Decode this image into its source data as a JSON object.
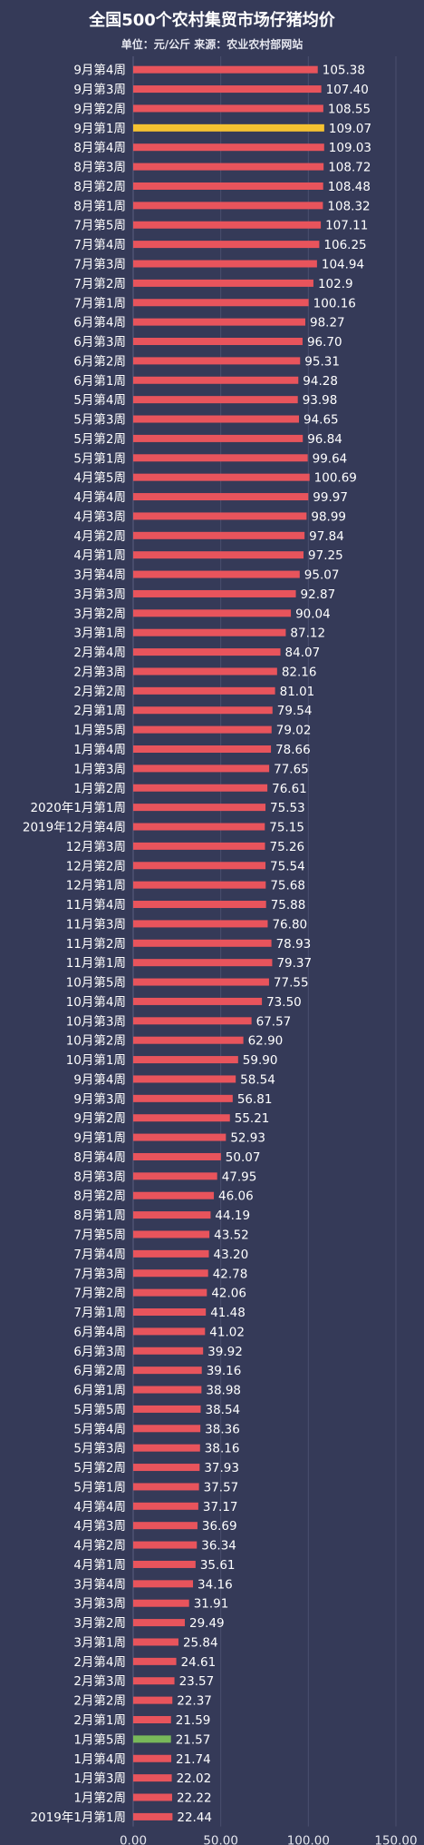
{
  "chart_data": {
    "type": "bar",
    "orientation": "horizontal",
    "title": "全国500个农村集贸市场仔猪均价",
    "subtitle": "单位：元/公斤 来源：农业农村部网站",
    "categories": [
      "9月第4周",
      "9月第3周",
      "9月第2周",
      "9月第1周",
      "8月第4周",
      "8月第3周",
      "8月第2周",
      "8月第1周",
      "7月第5周",
      "7月第4周",
      "7月第3周",
      "7月第2周",
      "7月第1周",
      "6月第4周",
      "6月第3周",
      "6月第2周",
      "6月第1周",
      "5月第4周",
      "5月第3周",
      "5月第2周",
      "5月第1周",
      "4月第5周",
      "4月第4周",
      "4月第3周",
      "4月第2周",
      "4月第1周",
      "3月第4周",
      "3月第3周",
      "3月第2周",
      "3月第1周",
      "2月第4周",
      "2月第3周",
      "2月第2周",
      "2月第1周",
      "1月第5周",
      "1月第4周",
      "1月第3周",
      "1月第2周",
      "2020年1月第1周",
      "2019年12月第4周",
      "12月第3周",
      "12月第2周",
      "12月第1周",
      "11月第4周",
      "11月第3周",
      "11月第2周",
      "11月第1周",
      "10月第5周",
      "10月第4周",
      "10月第3周",
      "10月第2周",
      "10月第1周",
      "9月第4周",
      "9月第3周",
      "9月第2周",
      "9月第1周",
      "8月第4周",
      "8月第3周",
      "8月第2周",
      "8月第1周",
      "7月第5周",
      "7月第4周",
      "7月第3周",
      "7月第2周",
      "7月第1周",
      "6月第4周",
      "6月第3周",
      "6月第2周",
      "6月第1周",
      "5月第5周",
      "5月第4周",
      "5月第3周",
      "5月第2周",
      "5月第1周",
      "4月第4周",
      "4月第3周",
      "4月第2周",
      "4月第1周",
      "3月第4周",
      "3月第3周",
      "3月第2周",
      "3月第1周",
      "2月第4周",
      "2月第3周",
      "2月第2周",
      "2月第1周",
      "1月第5周",
      "1月第4周",
      "1月第3周",
      "1月第2周",
      "2019年1月第1周"
    ],
    "values": [
      "105.38",
      "107.40",
      "108.55",
      "109.07",
      "109.03",
      "108.72",
      "108.48",
      "108.32",
      "107.11",
      "106.25",
      "104.94",
      "102.9",
      "100.16",
      "98.27",
      "96.70",
      "95.31",
      "94.28",
      "93.98",
      "94.65",
      "96.84",
      "99.64",
      "100.69",
      "99.97",
      "98.99",
      "97.84",
      "97.25",
      "95.07",
      "92.87",
      "90.04",
      "87.12",
      "84.07",
      "82.16",
      "81.01",
      "79.54",
      "79.02",
      "78.66",
      "77.65",
      "76.61",
      "75.53",
      "75.15",
      "75.26",
      "75.54",
      "75.68",
      "75.88",
      "76.80",
      "78.93",
      "79.37",
      "77.55",
      "73.50",
      "67.57",
      "62.90",
      "59.90",
      "58.54",
      "56.81",
      "55.21",
      "52.93",
      "50.07",
      "47.95",
      "46.06",
      "44.19",
      "43.52",
      "43.20",
      "42.78",
      "42.06",
      "41.48",
      "41.02",
      "39.92",
      "39.16",
      "38.98",
      "38.54",
      "38.36",
      "38.16",
      "37.93",
      "37.57",
      "37.17",
      "36.69",
      "36.34",
      "35.61",
      "34.16",
      "31.91",
      "29.49",
      "25.84",
      "24.61",
      "23.57",
      "22.37",
      "21.59",
      "21.57",
      "21.74",
      "22.02",
      "22.22",
      "22.44"
    ],
    "xlim": [
      0,
      150
    ],
    "x_ticks": [
      "0.00",
      "50.00",
      "100.00",
      "150.00"
    ],
    "grid": true,
    "colors": {
      "bar": "#e8545c",
      "highlight_max": "#f5c231",
      "highlight_min": "#78b85a",
      "background": "#353a58",
      "grid": "#4a4f6e"
    },
    "highlight_max_index": 3,
    "highlight_min_index": 86
  }
}
